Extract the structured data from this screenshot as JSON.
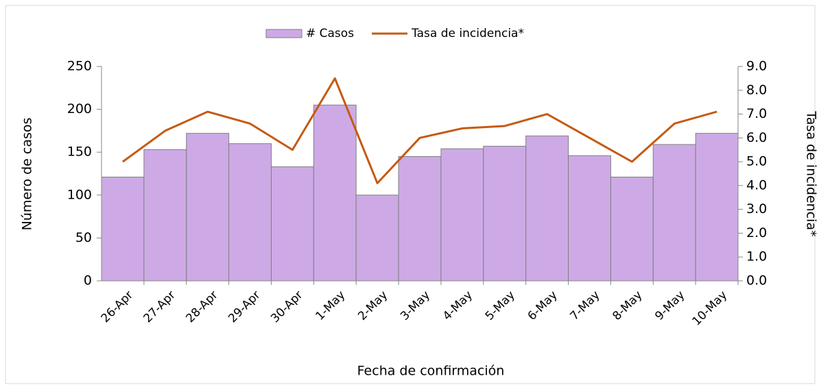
{
  "chart_data": {
    "type": "bar-line",
    "legend_position": "top",
    "x_label": "Fecha de confirmación",
    "y_label": "Número de casos",
    "y2_label": "Tasa de incidencia*",
    "categories": [
      "26-Apr",
      "27-Apr",
      "28-Apr",
      "29-Apr",
      "30-Apr",
      "1-May",
      "2-May",
      "3-May",
      "4-May",
      "5-May",
      "6-May",
      "7-May",
      "8-May",
      "9-May",
      "10-May"
    ],
    "series": [
      {
        "name": "# Casos",
        "type": "bar",
        "color": "#cdaae6",
        "values": [
          121,
          153,
          172,
          160,
          133,
          205,
          100,
          145,
          154,
          157,
          169,
          146,
          121,
          159,
          172
        ]
      },
      {
        "name": "Tasa de incidencia*",
        "type": "line",
        "axis": "y2",
        "color": "#c55a11",
        "values": [
          5.0,
          6.3,
          7.1,
          6.6,
          5.5,
          8.5,
          4.1,
          6.0,
          6.4,
          6.5,
          7.0,
          6.0,
          5.0,
          6.6,
          7.1
        ]
      }
    ],
    "ylim": [
      0,
      250
    ],
    "yticks": [
      0,
      50,
      100,
      150,
      200,
      250
    ],
    "y2lim": [
      0,
      9
    ],
    "y2ticks": [
      {
        "value": 0,
        "label": "0.0"
      },
      {
        "value": 1,
        "label": "1.0"
      },
      {
        "value": 2,
        "label": "2.0"
      },
      {
        "value": 3,
        "label": "3.0"
      },
      {
        "value": 4,
        "label": "4.0"
      },
      {
        "value": 5,
        "label": "5.0"
      },
      {
        "value": 6,
        "label": "6.0"
      },
      {
        "value": 7,
        "label": "7.0"
      },
      {
        "value": 8,
        "label": "8.0"
      },
      {
        "value": 9,
        "label": "9.0"
      }
    ]
  }
}
